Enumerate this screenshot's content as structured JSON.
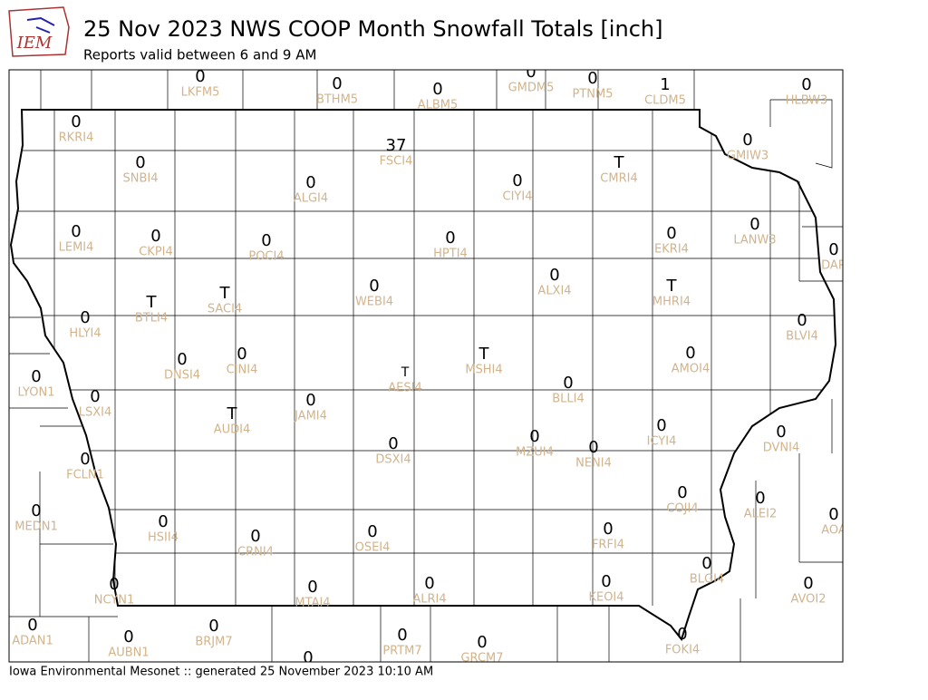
{
  "header": {
    "logo_text": "IEM",
    "title": "25 Nov 2023 NWS COOP Month Snowfall Totals [inch]",
    "subtitle": "Reports valid between 6 and 9 AM"
  },
  "stations": [
    {
      "value": 0,
      "id": "LKFM5"
    },
    {
      "value": 0,
      "id": "BTHM5"
    },
    {
      "value": 0,
      "id": "ALBM5"
    },
    {
      "value": 0,
      "id": "GMDM5"
    },
    {
      "value": 0,
      "id": "PTNM5"
    },
    {
      "value": 1,
      "id": "CLDM5"
    },
    {
      "value": 0,
      "id": "HLBW3"
    },
    {
      "value": 0,
      "id": "RKRI4"
    },
    {
      "value": 37,
      "id": "FSCI4"
    },
    {
      "value": 0,
      "id": "SNBI4"
    },
    {
      "value": "T",
      "id": "CMRI4"
    },
    {
      "value": 0,
      "id": "GMIW3"
    },
    {
      "value": 0,
      "id": "ALGI4"
    },
    {
      "value": 0,
      "id": "CIYI4"
    },
    {
      "value": 0,
      "id": "LEMI4"
    },
    {
      "value": 0,
      "id": "CKPI4"
    },
    {
      "value": 0,
      "id": "POCI4"
    },
    {
      "value": 0,
      "id": "HPTI4"
    },
    {
      "value": 0,
      "id": "EKRI4"
    },
    {
      "value": 0,
      "id": "LANW3"
    },
    {
      "value": 0,
      "id": "DAR"
    },
    {
      "value": 0,
      "id": "ALXI4"
    },
    {
      "value": 0,
      "id": "WEBI4"
    },
    {
      "value": "T",
      "id": "MHRI4"
    },
    {
      "value": "T",
      "id": "BTLI4"
    },
    {
      "value": "T",
      "id": "SACI4"
    },
    {
      "value": 0,
      "id": "HLYI4"
    },
    {
      "value": 0,
      "id": "BLVI4"
    },
    {
      "value": 0,
      "id": "AMOI4"
    },
    {
      "value": 0,
      "id": "DNSI4"
    },
    {
      "value": 0,
      "id": "CINI4"
    },
    {
      "value": "T",
      "id": "MSHI4"
    },
    {
      "value": "T",
      "id": "AESI4"
    },
    {
      "value": 0,
      "id": "LYON1"
    },
    {
      "value": 0,
      "id": "BLLI4"
    },
    {
      "value": 0,
      "id": "LSXI4"
    },
    {
      "value": 0,
      "id": "JAMI4"
    },
    {
      "value": "T",
      "id": "AUDI4"
    },
    {
      "value": 0,
      "id": "ICYI4"
    },
    {
      "value": 0,
      "id": "DVNI4"
    },
    {
      "value": 0,
      "id": "MZUI4"
    },
    {
      "value": 0,
      "id": "NENI4"
    },
    {
      "value": 0,
      "id": "DSXI4"
    },
    {
      "value": 0,
      "id": "FCLN1"
    },
    {
      "value": 0,
      "id": "COJI4"
    },
    {
      "value": 0,
      "id": "ALEI2"
    },
    {
      "value": 0,
      "id": "MEDN1"
    },
    {
      "value": 0,
      "id": "AOA"
    },
    {
      "value": 0,
      "id": "HSII4"
    },
    {
      "value": 0,
      "id": "CRNI4"
    },
    {
      "value": 0,
      "id": "OSEI4"
    },
    {
      "value": 0,
      "id": "FRFI4"
    },
    {
      "value": 0,
      "id": "BLGI4"
    },
    {
      "value": 0,
      "id": "KEOI4"
    },
    {
      "value": 0,
      "id": "ALRI4"
    },
    {
      "value": 0,
      "id": "MTAI4"
    },
    {
      "value": 0,
      "id": "NCYN1"
    },
    {
      "value": 0,
      "id": "AVOI2"
    },
    {
      "value": 0,
      "id": "ADAN1"
    },
    {
      "value": 0,
      "id": "BRJM7"
    },
    {
      "value": 0,
      "id": "AUBN1"
    },
    {
      "value": 0,
      "id": "PRTM7"
    },
    {
      "value": 0,
      "id": "GRCM7"
    },
    {
      "value": 0,
      "id": "FOKI4"
    },
    {
      "value": 0,
      "id": null
    }
  ],
  "footer": "Iowa Environmental Mesonet :: generated 25 November 2023 10:10 AM"
}
